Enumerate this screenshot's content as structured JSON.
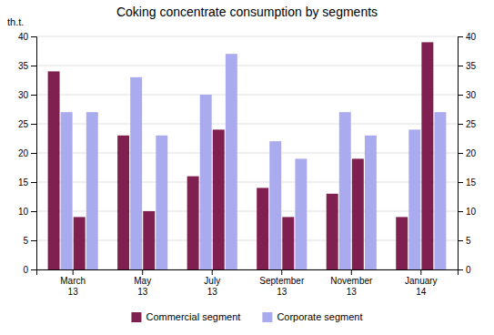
{
  "chart_data": {
    "type": "bar",
    "title": "Coking concentrate  consumption by segments",
    "ylabel": "th.t.",
    "categories": [
      "March\n13",
      "May\n13",
      "July\n13",
      "September\n13",
      "November\n13",
      "January\n14"
    ],
    "series": [
      {
        "name": "Commercial segment",
        "color": "#802050",
        "values": [
          34,
          23,
          16,
          14,
          13,
          9
        ]
      },
      {
        "name": "Corporate segment",
        "color": "#aaaaee",
        "values": [
          27,
          33,
          30,
          22,
          27,
          24
        ]
      },
      {
        "name": "Commercial segment",
        "color": "#802050",
        "values": [
          9,
          10,
          24,
          9,
          19,
          39
        ]
      },
      {
        "name": "Corporate segment",
        "color": "#aaaaee",
        "values": [
          27,
          23,
          37,
          19,
          23,
          27
        ]
      }
    ],
    "ylim": [
      0,
      40
    ],
    "yticks": [
      0,
      5,
      10,
      15,
      20,
      25,
      30,
      35,
      40
    ],
    "grid": true,
    "legend": "bottom"
  }
}
